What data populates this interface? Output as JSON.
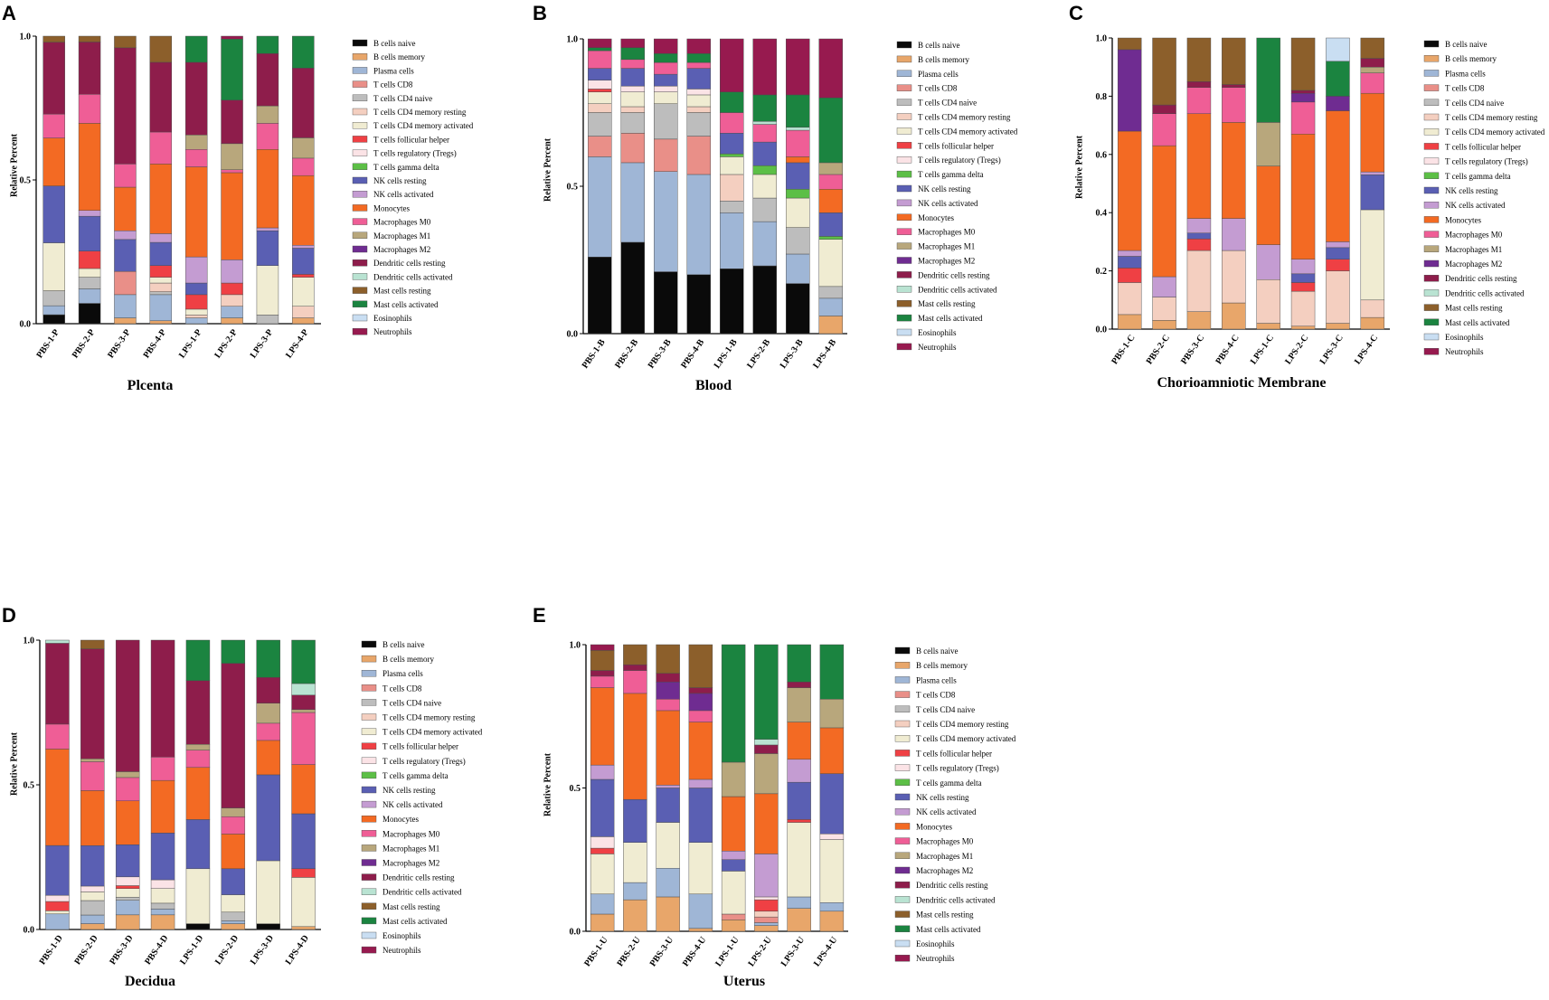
{
  "cell_types": [
    "B cells naive",
    "B cells memory",
    "Plasma cells",
    "T cells CD8",
    "T cells CD4 naive",
    "T cells CD4 memory resting",
    "T cells CD4 memory activated",
    "T cells follicular helper",
    "T cells regulatory (Tregs)",
    "T cells gamma delta",
    "NK cells resting",
    "NK cells activated",
    "Monocytes",
    "Macrophages M0",
    "Macrophages M1",
    "Macrophages M2",
    "Dendritic cells resting",
    "Dendritic cells activated",
    "Mast cells resting",
    "Mast cells activated",
    "Eosinophils",
    "Neutrophils"
  ],
  "colors": [
    "#0a0a0a",
    "#e8a66a",
    "#9fb6d6",
    "#e98f88",
    "#bdbdbd",
    "#f4cfc0",
    "#f0ecd2",
    "#ef4044",
    "#fbe3e6",
    "#5cbf46",
    "#5a5fb3",
    "#c49cd2",
    "#f36a23",
    "#ef5e96",
    "#b8a77c",
    "#6f2c91",
    "#8e1d4b",
    "#b9e3d2",
    "#8c5f2b",
    "#1b8440",
    "#c9def2",
    "#971a4f"
  ],
  "chart_data": [
    {
      "panel": "A",
      "type": "bar",
      "stacked": true,
      "title": "Plcenta",
      "ylabel": "Relative Percent",
      "ylim": [
        0,
        1
      ],
      "yticks": [
        "0.0",
        "0.5",
        "1.0"
      ],
      "categories": [
        "PBS-1-P",
        "PBS-2-P",
        "PBS-3-P",
        "PBS-4-P",
        "LPS-1-P",
        "LPS-2-P",
        "LPS-3-P",
        "LPS-4-P"
      ],
      "values": [
        [
          0.03,
          0.0,
          0.03,
          0.0,
          0.05,
          0.0,
          0.16,
          0.0,
          0.0,
          0.0,
          0.19,
          0.0,
          0.16,
          0.08,
          0.0,
          0.0,
          0.24,
          0.0,
          0.02,
          0.0,
          0.0,
          0.0
        ],
        [
          0.07,
          0.0,
          0.05,
          0.0,
          0.04,
          0.0,
          0.03,
          0.06,
          0.0,
          0.0,
          0.12,
          0.02,
          0.3,
          0.1,
          0.0,
          0.0,
          0.18,
          0.0,
          0.02,
          0.0,
          0.0,
          0.0
        ],
        [
          0.0,
          0.02,
          0.08,
          0.08,
          0.0,
          0.0,
          0.0,
          0.0,
          0.0,
          0.0,
          0.11,
          0.03,
          0.15,
          0.08,
          0.0,
          0.0,
          0.4,
          0.0,
          0.04,
          0.0,
          0.0,
          0.0
        ],
        [
          0.0,
          0.01,
          0.09,
          0.0,
          0.01,
          0.03,
          0.02,
          0.04,
          0.0,
          0.0,
          0.08,
          0.03,
          0.24,
          0.11,
          0.0,
          0.0,
          0.24,
          0.0,
          0.09,
          0.0,
          0.0,
          0.0
        ],
        [
          0.0,
          0.0,
          0.02,
          0.0,
          0.0,
          0.01,
          0.02,
          0.05,
          0.0,
          0.0,
          0.04,
          0.09,
          0.31,
          0.06,
          0.05,
          0.0,
          0.25,
          0.0,
          0.0,
          0.09,
          0.0,
          0.0
        ],
        [
          0.0,
          0.02,
          0.04,
          0.0,
          0.0,
          0.04,
          0.0,
          0.04,
          0.0,
          0.0,
          0.0,
          0.08,
          0.3,
          0.01,
          0.09,
          0.0,
          0.15,
          0.0,
          0.0,
          0.21,
          0.0,
          0.01
        ],
        [
          0.0,
          0.0,
          0.0,
          0.0,
          0.03,
          0.0,
          0.17,
          0.0,
          0.0,
          0.0,
          0.12,
          0.01,
          0.27,
          0.09,
          0.06,
          0.0,
          0.18,
          0.0,
          0.0,
          0.06,
          0.0,
          0.0
        ],
        [
          0.0,
          0.02,
          0.0,
          0.0,
          0.0,
          0.04,
          0.1,
          0.01,
          0.0,
          0.0,
          0.09,
          0.01,
          0.24,
          0.06,
          0.07,
          0.0,
          0.24,
          0.0,
          0.0,
          0.11,
          0.0,
          0.0
        ]
      ]
    },
    {
      "panel": "B",
      "type": "bar",
      "stacked": true,
      "title": "Blood",
      "ylabel": "Relative Percent",
      "ylim": [
        0,
        1
      ],
      "yticks": [
        "0.0",
        "0.5",
        "1.0"
      ],
      "categories": [
        "PBS-1-B",
        "PBS-2-B",
        "PBS-3-B",
        "PBS-4-B",
        "LPS-1-B",
        "LPS-2-B",
        "LPS-3-B",
        "LPS-4-B"
      ],
      "values": [
        [
          0.26,
          0.0,
          0.34,
          0.07,
          0.08,
          0.03,
          0.04,
          0.01,
          0.03,
          0.0,
          0.04,
          0.0,
          0.0,
          0.06,
          0.0,
          0.0,
          0.0,
          0.0,
          0.0,
          0.01,
          0.0,
          0.03
        ],
        [
          0.31,
          0.0,
          0.27,
          0.1,
          0.07,
          0.02,
          0.05,
          0.0,
          0.02,
          0.0,
          0.06,
          0.0,
          0.0,
          0.03,
          0.0,
          0.0,
          0.0,
          0.0,
          0.0,
          0.04,
          0.0,
          0.03
        ],
        [
          0.21,
          0.0,
          0.34,
          0.11,
          0.12,
          0.0,
          0.04,
          0.0,
          0.02,
          0.0,
          0.04,
          0.0,
          0.0,
          0.04,
          0.0,
          0.0,
          0.0,
          0.0,
          0.0,
          0.03,
          0.0,
          0.05
        ],
        [
          0.2,
          0.0,
          0.34,
          0.13,
          0.08,
          0.02,
          0.04,
          0.0,
          0.02,
          0.0,
          0.07,
          0.0,
          0.0,
          0.02,
          0.0,
          0.0,
          0.0,
          0.0,
          0.0,
          0.03,
          0.0,
          0.05
        ],
        [
          0.22,
          0.0,
          0.19,
          0.0,
          0.04,
          0.09,
          0.06,
          0.0,
          0.0,
          0.01,
          0.07,
          0.0,
          0.0,
          0.07,
          0.0,
          0.0,
          0.0,
          0.0,
          0.0,
          0.07,
          0.0,
          0.18
        ],
        [
          0.23,
          0.0,
          0.15,
          0.0,
          0.08,
          0.0,
          0.08,
          0.0,
          0.0,
          0.03,
          0.08,
          0.0,
          0.0,
          0.06,
          0.0,
          0.0,
          0.0,
          0.01,
          0.0,
          0.09,
          0.0,
          0.19
        ],
        [
          0.17,
          0.0,
          0.1,
          0.0,
          0.09,
          0.0,
          0.1,
          0.0,
          0.0,
          0.03,
          0.09,
          0.0,
          0.02,
          0.09,
          0.0,
          0.0,
          0.0,
          0.01,
          0.0,
          0.11,
          0.0,
          0.19
        ],
        [
          0.0,
          0.06,
          0.06,
          0.0,
          0.04,
          0.0,
          0.16,
          0.0,
          0.0,
          0.01,
          0.08,
          0.0,
          0.08,
          0.05,
          0.04,
          0.0,
          0.0,
          0.0,
          0.0,
          0.22,
          0.0,
          0.2
        ]
      ]
    },
    {
      "panel": "C",
      "type": "bar",
      "stacked": true,
      "title": "Chorioamniotic Membrane",
      "ylabel": "Relative Percent",
      "ylim": [
        0,
        1
      ],
      "yticks": [
        "0.0",
        "0.2",
        "0.4",
        "0.6",
        "0.8",
        "1.0"
      ],
      "categories": [
        "PBS-1-C",
        "PBS-2-C",
        "PBS-3-C",
        "PBS-4-C",
        "LPS-1-C",
        "LPS-2-C",
        "LPS-3-C",
        "LPS-4-C"
      ],
      "values": [
        [
          0.0,
          0.05,
          0.0,
          0.0,
          0.0,
          0.11,
          0.0,
          0.05,
          0.0,
          0.0,
          0.04,
          0.02,
          0.41,
          0.0,
          0.0,
          0.28,
          0.0,
          0.0,
          0.04,
          0.0,
          0.0,
          0.0
        ],
        [
          0.0,
          0.03,
          0.0,
          0.0,
          0.0,
          0.08,
          0.0,
          0.0,
          0.0,
          0.0,
          0.0,
          0.07,
          0.45,
          0.11,
          0.0,
          0.0,
          0.03,
          0.0,
          0.23,
          0.0,
          0.0,
          0.0
        ],
        [
          0.0,
          0.06,
          0.0,
          0.0,
          0.0,
          0.21,
          0.0,
          0.04,
          0.0,
          0.0,
          0.02,
          0.05,
          0.36,
          0.09,
          0.0,
          0.0,
          0.02,
          0.0,
          0.15,
          0.0,
          0.0,
          0.0
        ],
        [
          0.0,
          0.09,
          0.0,
          0.0,
          0.0,
          0.18,
          0.0,
          0.0,
          0.0,
          0.0,
          0.0,
          0.11,
          0.33,
          0.12,
          0.0,
          0.0,
          0.01,
          0.0,
          0.16,
          0.0,
          0.0,
          0.0
        ],
        [
          0.0,
          0.02,
          0.0,
          0.0,
          0.0,
          0.15,
          0.0,
          0.0,
          0.0,
          0.0,
          0.0,
          0.12,
          0.27,
          0.0,
          0.15,
          0.0,
          0.0,
          0.0,
          0.0,
          0.29,
          0.0,
          0.0
        ],
        [
          0.0,
          0.01,
          0.0,
          0.0,
          0.0,
          0.12,
          0.0,
          0.03,
          0.0,
          0.0,
          0.03,
          0.05,
          0.43,
          0.11,
          0.0,
          0.03,
          0.01,
          0.0,
          0.18,
          0.0,
          0.0,
          0.0
        ],
        [
          0.0,
          0.02,
          0.0,
          0.0,
          0.0,
          0.18,
          0.0,
          0.04,
          0.0,
          0.0,
          0.04,
          0.02,
          0.45,
          0.0,
          0.0,
          0.05,
          0.0,
          0.0,
          0.0,
          0.12,
          0.08,
          0.0
        ],
        [
          0.0,
          0.04,
          0.0,
          0.0,
          0.0,
          0.06,
          0.31,
          0.0,
          0.0,
          0.0,
          0.12,
          0.01,
          0.27,
          0.07,
          0.02,
          0.0,
          0.03,
          0.0,
          0.07,
          0.0,
          0.0,
          0.0
        ]
      ]
    },
    {
      "panel": "D",
      "type": "bar",
      "stacked": true,
      "title": "Decidua",
      "ylabel": "Relative Percent",
      "ylim": [
        0,
        1
      ],
      "yticks": [
        "0.0",
        "0.5",
        "1.0"
      ],
      "categories": [
        "PBS-1-D",
        "PBS-2-D",
        "PBS-3-D",
        "PBS-4-D",
        "LPS-1-D",
        "LPS-2-D",
        "LPS-3-D",
        "LPS-4-D"
      ],
      "values": [
        [
          0.0,
          0.0,
          0.05,
          0.0,
          0.0,
          0.0,
          0.01,
          0.03,
          0.02,
          0.0,
          0.16,
          0.0,
          0.31,
          0.08,
          0.0,
          0.0,
          0.26,
          0.01,
          0.0,
          0.0,
          0.0,
          0.0
        ],
        [
          0.0,
          0.02,
          0.03,
          0.0,
          0.05,
          0.0,
          0.03,
          0.0,
          0.02,
          0.0,
          0.14,
          0.0,
          0.19,
          0.1,
          0.01,
          0.0,
          0.38,
          0.0,
          0.03,
          0.0,
          0.0,
          0.0
        ],
        [
          0.0,
          0.05,
          0.05,
          0.0,
          0.01,
          0.0,
          0.03,
          0.01,
          0.03,
          0.0,
          0.11,
          0.0,
          0.15,
          0.08,
          0.02,
          0.0,
          0.45,
          0.0,
          0.0,
          0.0,
          0.0,
          0.0
        ],
        [
          0.0,
          0.05,
          0.02,
          0.0,
          0.02,
          0.0,
          0.05,
          0.0,
          0.03,
          0.0,
          0.16,
          0.0,
          0.18,
          0.08,
          0.0,
          0.0,
          0.4,
          0.0,
          0.0,
          0.0,
          0.0,
          0.0
        ],
        [
          0.02,
          0.0,
          0.0,
          0.0,
          0.0,
          0.0,
          0.19,
          0.0,
          0.0,
          0.0,
          0.17,
          0.0,
          0.18,
          0.06,
          0.02,
          0.0,
          0.22,
          0.0,
          0.0,
          0.14,
          0.0,
          0.0
        ],
        [
          0.0,
          0.02,
          0.01,
          0.0,
          0.03,
          0.0,
          0.06,
          0.0,
          0.0,
          0.0,
          0.09,
          0.0,
          0.12,
          0.06,
          0.03,
          0.0,
          0.5,
          0.0,
          0.0,
          0.08,
          0.0,
          0.0
        ],
        [
          0.02,
          0.0,
          0.0,
          0.0,
          0.0,
          0.0,
          0.22,
          0.0,
          0.0,
          0.0,
          0.3,
          0.0,
          0.12,
          0.06,
          0.07,
          0.0,
          0.09,
          0.0,
          0.0,
          0.13,
          0.0,
          0.0
        ],
        [
          0.0,
          0.01,
          0.0,
          0.0,
          0.0,
          0.0,
          0.17,
          0.03,
          0.0,
          0.0,
          0.19,
          0.0,
          0.17,
          0.18,
          0.01,
          0.0,
          0.05,
          0.04,
          0.0,
          0.15,
          0.0,
          0.0
        ]
      ]
    },
    {
      "panel": "E",
      "type": "bar",
      "stacked": true,
      "title": "Uterus",
      "ylabel": "Relative Percent",
      "ylim": [
        0,
        1
      ],
      "yticks": [
        "0.0",
        "0.5",
        "1.0"
      ],
      "categories": [
        "PBS-1-U",
        "PBS-2-U",
        "PBS-3-U",
        "PBS-4-U",
        "LPS-1-U",
        "LPS-2-U",
        "LPS-3-U",
        "LPS-4-U"
      ],
      "values": [
        [
          0.0,
          0.06,
          0.07,
          0.0,
          0.0,
          0.0,
          0.14,
          0.02,
          0.04,
          0.0,
          0.2,
          0.05,
          0.27,
          0.04,
          0.0,
          0.0,
          0.02,
          0.0,
          0.07,
          0.0,
          0.0,
          0.02
        ],
        [
          0.0,
          0.11,
          0.06,
          0.0,
          0.0,
          0.0,
          0.14,
          0.0,
          0.0,
          0.0,
          0.15,
          0.0,
          0.37,
          0.08,
          0.0,
          0.0,
          0.02,
          0.0,
          0.07,
          0.0,
          0.0,
          0.0
        ],
        [
          0.0,
          0.12,
          0.1,
          0.0,
          0.0,
          0.0,
          0.16,
          0.0,
          0.0,
          0.0,
          0.12,
          0.01,
          0.26,
          0.04,
          0.0,
          0.06,
          0.03,
          0.0,
          0.1,
          0.0,
          0.0,
          0.0
        ],
        [
          0.0,
          0.01,
          0.12,
          0.0,
          0.0,
          0.0,
          0.18,
          0.0,
          0.0,
          0.0,
          0.19,
          0.03,
          0.2,
          0.04,
          0.0,
          0.06,
          0.02,
          0.0,
          0.15,
          0.0,
          0.0,
          0.0
        ],
        [
          0.0,
          0.04,
          0.0,
          0.02,
          0.0,
          0.0,
          0.15,
          0.0,
          0.0,
          0.0,
          0.04,
          0.03,
          0.19,
          0.0,
          0.12,
          0.0,
          0.0,
          0.0,
          0.0,
          0.41,
          0.0,
          0.0
        ],
        [
          0.0,
          0.02,
          0.01,
          0.02,
          0.0,
          0.02,
          0.0,
          0.04,
          0.01,
          0.0,
          0.0,
          0.15,
          0.21,
          0.0,
          0.14,
          0.0,
          0.03,
          0.02,
          0.0,
          0.33,
          0.0,
          0.0
        ],
        [
          0.0,
          0.08,
          0.04,
          0.0,
          0.0,
          0.0,
          0.26,
          0.01,
          0.0,
          0.0,
          0.13,
          0.08,
          0.13,
          0.0,
          0.12,
          0.0,
          0.02,
          0.0,
          0.0,
          0.13,
          0.0,
          0.0
        ],
        [
          0.0,
          0.07,
          0.03,
          0.0,
          0.0,
          0.0,
          0.22,
          0.0,
          0.02,
          0.0,
          0.21,
          0.0,
          0.16,
          0.0,
          0.1,
          0.0,
          0.0,
          0.0,
          0.0,
          0.19,
          0.0,
          0.0
        ]
      ]
    }
  ]
}
